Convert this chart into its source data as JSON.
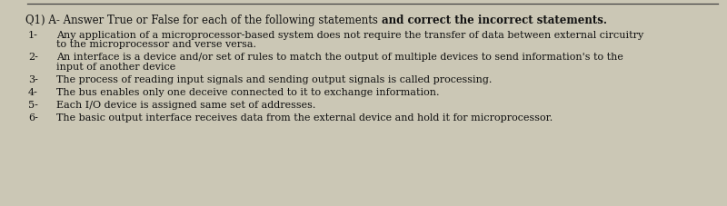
{
  "bg_color": "#cbc7b5",
  "paper_color": "#e0ddd0",
  "title_normal": "Q1) A- Answer True or False for each of the following statements ",
  "title_bold": "and correct the incorrect statements.",
  "lines": [
    {
      "num": "1-",
      "line1": "Any application of a microprocessor-based system does not require the transfer of data between external circuitry",
      "line2": "to the microprocessor and verse versa."
    },
    {
      "num": "2-",
      "line1": "An interface is a device and/or set of rules to match the output of multiple devices to send information's to the",
      "line2": "input of another device"
    },
    {
      "num": "3-",
      "line1": "The process of reading input signals and sending output signals is called processing.",
      "line2": ""
    },
    {
      "num": "4-",
      "line1": "The bus enables only one deceive connected to it to exchange information.",
      "line2": ""
    },
    {
      "num": "5-",
      "line1": "Each I/O device is assigned same set of addresses.",
      "line2": ""
    },
    {
      "num": "6-",
      "line1": "The basic output interface receives data from the external device and hold it for microprocessor.",
      "line2": ""
    }
  ],
  "text_color": "#111111",
  "title_fontsize": 8.5,
  "body_fontsize": 8.0,
  "fig_width": 8.0,
  "fig_height": 2.27,
  "dpi": 100
}
